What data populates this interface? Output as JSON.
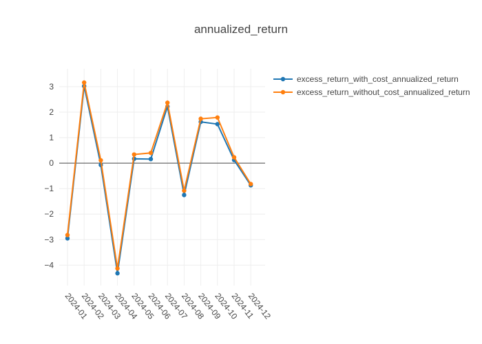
{
  "chart_data": {
    "type": "line",
    "title": "annualized_return",
    "xlabel": "",
    "ylabel": "",
    "categories": [
      "2024-01",
      "2024-02",
      "2024-03",
      "2024-04",
      "2024-05",
      "2024-06",
      "2024-07",
      "2024-08",
      "2024-09",
      "2024-10",
      "2024-11",
      "2024-12"
    ],
    "ylim": [
      -4.8,
      3.7
    ],
    "yticks": [
      -4,
      -3,
      -2,
      -1,
      0,
      1,
      2,
      3
    ],
    "grid": true,
    "legend_position": "top-right",
    "series": [
      {
        "name": "excess_return_with_cost_annualized_return",
        "color": "#1f77b4",
        "values": [
          -2.95,
          3.02,
          -0.07,
          -4.32,
          0.17,
          0.16,
          2.22,
          -1.25,
          1.62,
          1.53,
          0.12,
          -0.87
        ]
      },
      {
        "name": "excess_return_without_cost_annualized_return",
        "color": "#ff7f0e",
        "values": [
          -2.82,
          3.16,
          0.11,
          -4.13,
          0.34,
          0.4,
          2.37,
          -1.08,
          1.74,
          1.79,
          0.23,
          -0.82
        ]
      }
    ]
  }
}
